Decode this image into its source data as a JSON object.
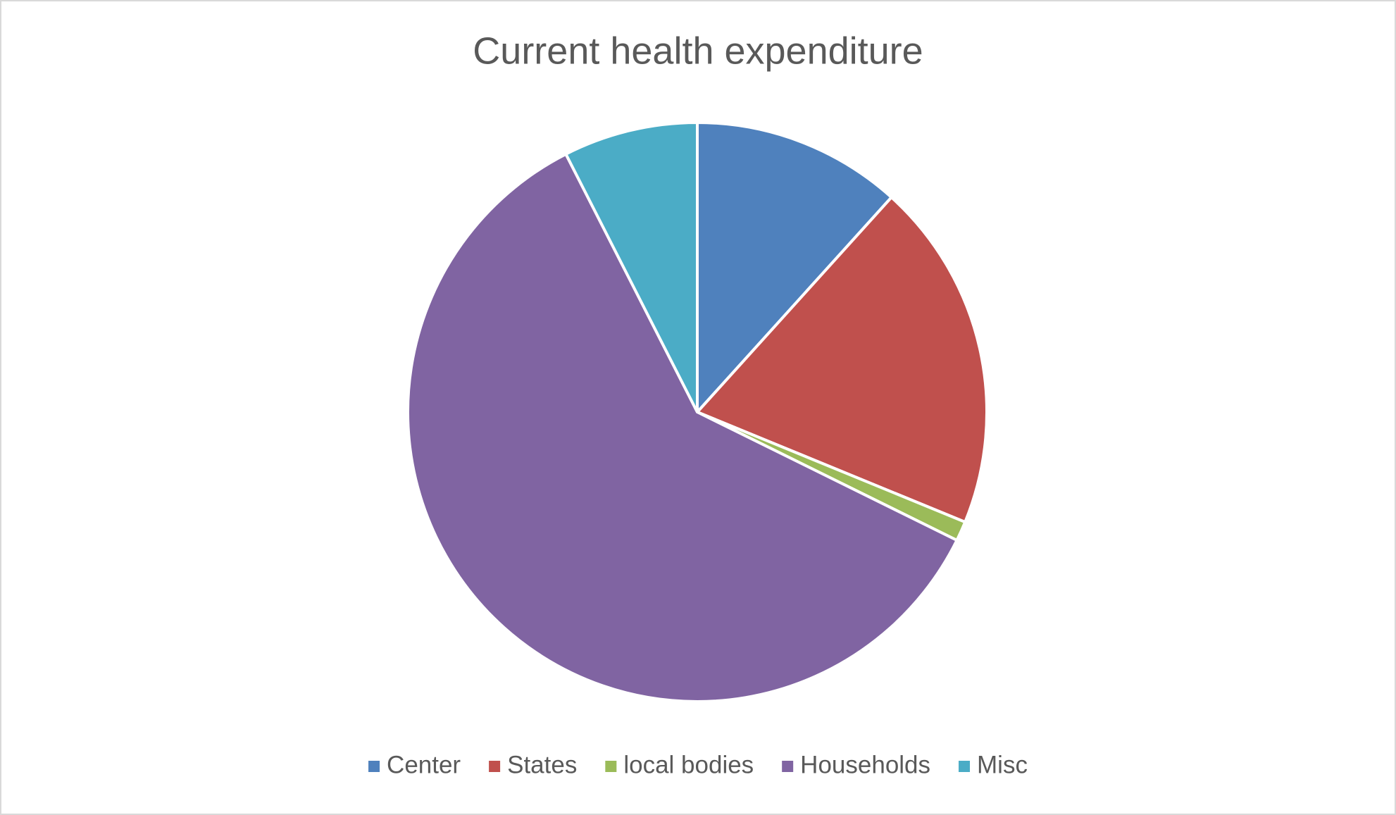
{
  "chart_data": {
    "type": "pie",
    "title": "Current health expenditure",
    "categories": [
      "Center",
      "States",
      "local bodies",
      "Households",
      "Misc"
    ],
    "values": [
      11.7,
      19.5,
      1.1,
      60.2,
      7.5
    ],
    "colors": [
      "#4f81bd",
      "#c0504d",
      "#9bbb59",
      "#8064a2",
      "#4bacc6"
    ],
    "legend": "bottom"
  }
}
